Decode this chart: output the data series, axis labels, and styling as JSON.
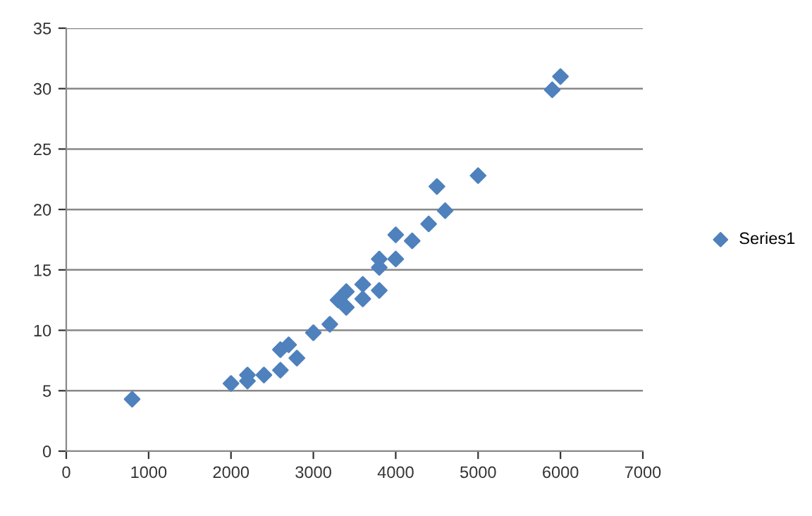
{
  "chart_data": {
    "type": "scatter",
    "xlim": [
      0,
      7000
    ],
    "xticks": [
      0,
      1000,
      2000,
      3000,
      4000,
      5000,
      6000,
      7000
    ],
    "ylim": [
      0,
      35
    ],
    "yticks": [
      0,
      5,
      10,
      15,
      20,
      25,
      30,
      35
    ],
    "grid": "y",
    "legend": "right",
    "marker": "diamond",
    "series": [
      {
        "name": "Series1",
        "color": "#4f81bd",
        "x": [
          800,
          2000,
          2200,
          2200,
          2400,
          2600,
          2600,
          2700,
          2800,
          3000,
          3200,
          3300,
          3400,
          3400,
          3600,
          3600,
          3800,
          3800,
          3800,
          4000,
          4000,
          4200,
          4400,
          4500,
          4600,
          5000,
          5900,
          6000
        ],
        "values": [
          4.3,
          5.6,
          6.3,
          5.8,
          6.3,
          6.7,
          8.4,
          8.8,
          7.7,
          9.8,
          10.5,
          12.5,
          13.2,
          11.9,
          13.8,
          12.6,
          15.9,
          15.2,
          13.3,
          17.9,
          15.9,
          17.4,
          18.8,
          21.9,
          19.9,
          22.8,
          29.9,
          31
        ]
      }
    ]
  }
}
